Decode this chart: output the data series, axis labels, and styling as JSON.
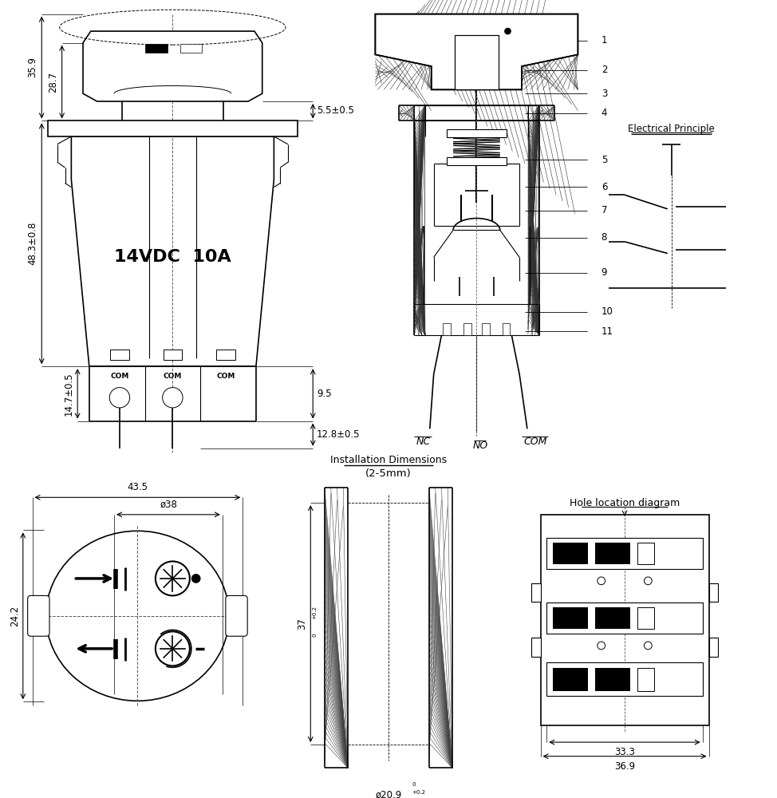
{
  "bg_color": "#ffffff",
  "line_color": "#000000",
  "title": "14VDC  10A",
  "dim_35_9": "35.9",
  "dim_28_7": "28.7",
  "dim_48_3": "48.3±0.8",
  "dim_14_7": "14.7±0.5",
  "dim_5_5": "5.5±0.5",
  "dim_9_5": "9.5",
  "dim_12_8": "12.8±0.5",
  "dim_43_5": "43.5",
  "dim_38": "ø38",
  "dim_24_2": "24.2",
  "dim_37": "37",
  "dim_37_sup": "+0.2\n0",
  "dim_20_9": "ø20.9",
  "dim_20_9_sup": "+0.2\n0",
  "dim_33_3": "33.3",
  "dim_36_9": "36.9",
  "parts": [
    "1",
    "2",
    "3",
    "4",
    "5",
    "6",
    "7",
    "8",
    "9",
    "10",
    "11"
  ],
  "labels_nc_no_com": [
    "NC",
    "NO",
    "COM"
  ],
  "elec_title": "Electrical Principle",
  "install_title": "Installation Dimensions",
  "install_sub": "(2-5mm)",
  "hole_title": "Hole location diagram"
}
